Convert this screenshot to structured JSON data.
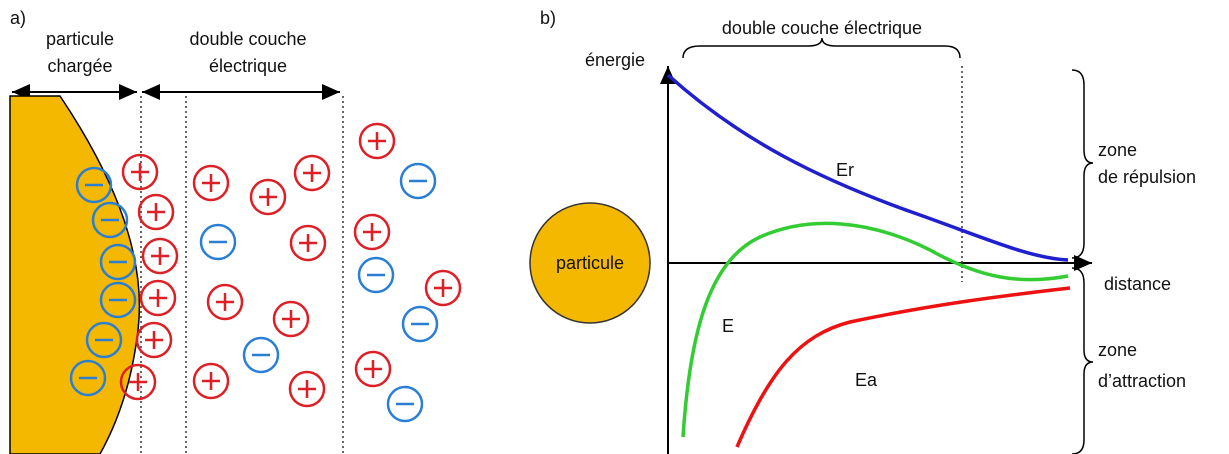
{
  "panel_a": {
    "label": "a)",
    "particle_label": [
      "particule",
      "chargée"
    ],
    "layer_label": [
      "double couche",
      "électrique"
    ]
  },
  "panel_b": {
    "label": "b)",
    "layer_label": "double couche électrique",
    "y_axis": "énergie",
    "x_axis": "distance",
    "particle": "particule",
    "curves": {
      "repulsion": "Er",
      "total": "E",
      "attraction": "Ea"
    },
    "zones": {
      "repulsion": [
        "zone",
        "de répulsion"
      ],
      "attraction": [
        "zone",
        "d’attraction"
      ]
    }
  }
}
